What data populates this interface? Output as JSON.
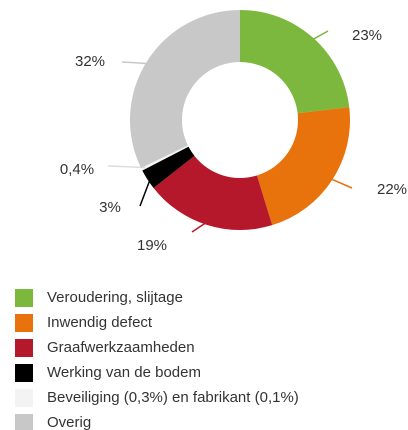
{
  "chart_data": {
    "type": "donut",
    "categories": [
      "Veroudering, slijtage",
      "Inwendig defect",
      "Graafwerkzaamheden",
      "Werking van de bodem",
      "Beveiliging (0,3%) en fabrikant (0,1%)",
      "Overig"
    ],
    "values": [
      23,
      22,
      19,
      3,
      0.4,
      32
    ],
    "value_labels": [
      "23%",
      "22%",
      "19%",
      "3%",
      "0,4%",
      "32%"
    ],
    "colors": [
      "#7cb83e",
      "#e8720c",
      "#b5182a",
      "#000000",
      "#f3f3f3",
      "#c8c8c8"
    ],
    "legend": "bottom-left"
  }
}
